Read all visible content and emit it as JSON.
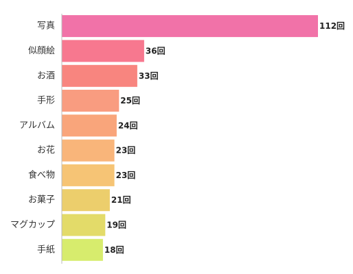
{
  "chart_data": {
    "type": "bar",
    "orientation": "horizontal",
    "categories": [
      "写真",
      "似顔絵",
      "お酒",
      "手形",
      "アルバム",
      "お花",
      "食べ物",
      "お菓子",
      "マグカップ",
      "手紙"
    ],
    "values": [
      112,
      36,
      33,
      25,
      24,
      23,
      23,
      21,
      19,
      18
    ],
    "value_labels": [
      "112回",
      "36回",
      "33回",
      "25回",
      "24回",
      "23回",
      "23回",
      "21回",
      "19回",
      "18回"
    ],
    "xlim": [
      0,
      112
    ],
    "grid": false,
    "legend": "none",
    "colors": [
      "#f172a8",
      "#f7788f",
      "#f8857f",
      "#f99c80",
      "#f9a57b",
      "#f9b57a",
      "#f6c475",
      "#ecce6c",
      "#e3db69",
      "#d7ec6d"
    ]
  }
}
